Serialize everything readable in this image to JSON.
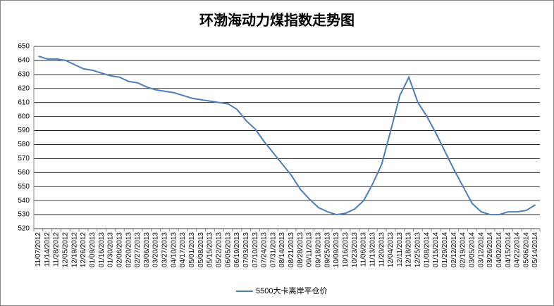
{
  "chart_data": {
    "type": "line",
    "title": "环渤海动力煤指数走势图",
    "categories": [
      "11/07/2012",
      "11/14/2012",
      "11/28/2012",
      "12/05/2012",
      "12/19/2012",
      "12/26/2012",
      "01/09/2013",
      "01/16/2013",
      "01/30/2013",
      "02/06/2013",
      "02/20/2013",
      "02/27/2013",
      "03/06/2013",
      "03/20/2013",
      "03/27/2013",
      "04/10/2013",
      "04/17/2013",
      "05/01/2013",
      "05/08/2013",
      "05/15/2013",
      "05/22/2013",
      "06/05/2013",
      "06/19/2013",
      "07/03/2013",
      "07/10/2013",
      "07/24/2013",
      "07/31/2013",
      "08/14/2013",
      "08/21/2013",
      "08/28/2013",
      "09/11/2013",
      "09/18/2013",
      "09/25/2013",
      "10/09/2013",
      "10/16/2013",
      "10/23/2013",
      "11/06/2013",
      "11/13/2013",
      "11/20/2013",
      "12/04/2013",
      "12/11/2013",
      "12/18/2013",
      "12/25/2013",
      "01/08/2014",
      "01/15/2014",
      "01/29/2014",
      "02/12/2014",
      "02/19/2014",
      "03/05/2014",
      "03/12/2014",
      "03/26/2014",
      "04/02/2014",
      "04/15/2014",
      "04/22/2014",
      "05/06/2014",
      "05/14/2014"
    ],
    "series": [
      {
        "name": "5500大卡离岸平仓价",
        "color": "#4a7ebb",
        "values": [
          643,
          641,
          641,
          640,
          637,
          634,
          633,
          631,
          629,
          628,
          625,
          624,
          621,
          619,
          618,
          617,
          615,
          613,
          612,
          611,
          610,
          609,
          605,
          597,
          591,
          582,
          574,
          566,
          558,
          548,
          541,
          535,
          532,
          530,
          531,
          534,
          540,
          552,
          566,
          590,
          615,
          628,
          610,
          600,
          588,
          575,
          562,
          550,
          538,
          532,
          530,
          530,
          532,
          532,
          533,
          537
        ]
      }
    ],
    "ylim": [
      520,
      650
    ],
    "yticks": [
      520,
      530,
      540,
      550,
      560,
      570,
      580,
      590,
      600,
      610,
      620,
      630,
      640,
      650
    ],
    "grid": true,
    "legend": "bottom"
  }
}
